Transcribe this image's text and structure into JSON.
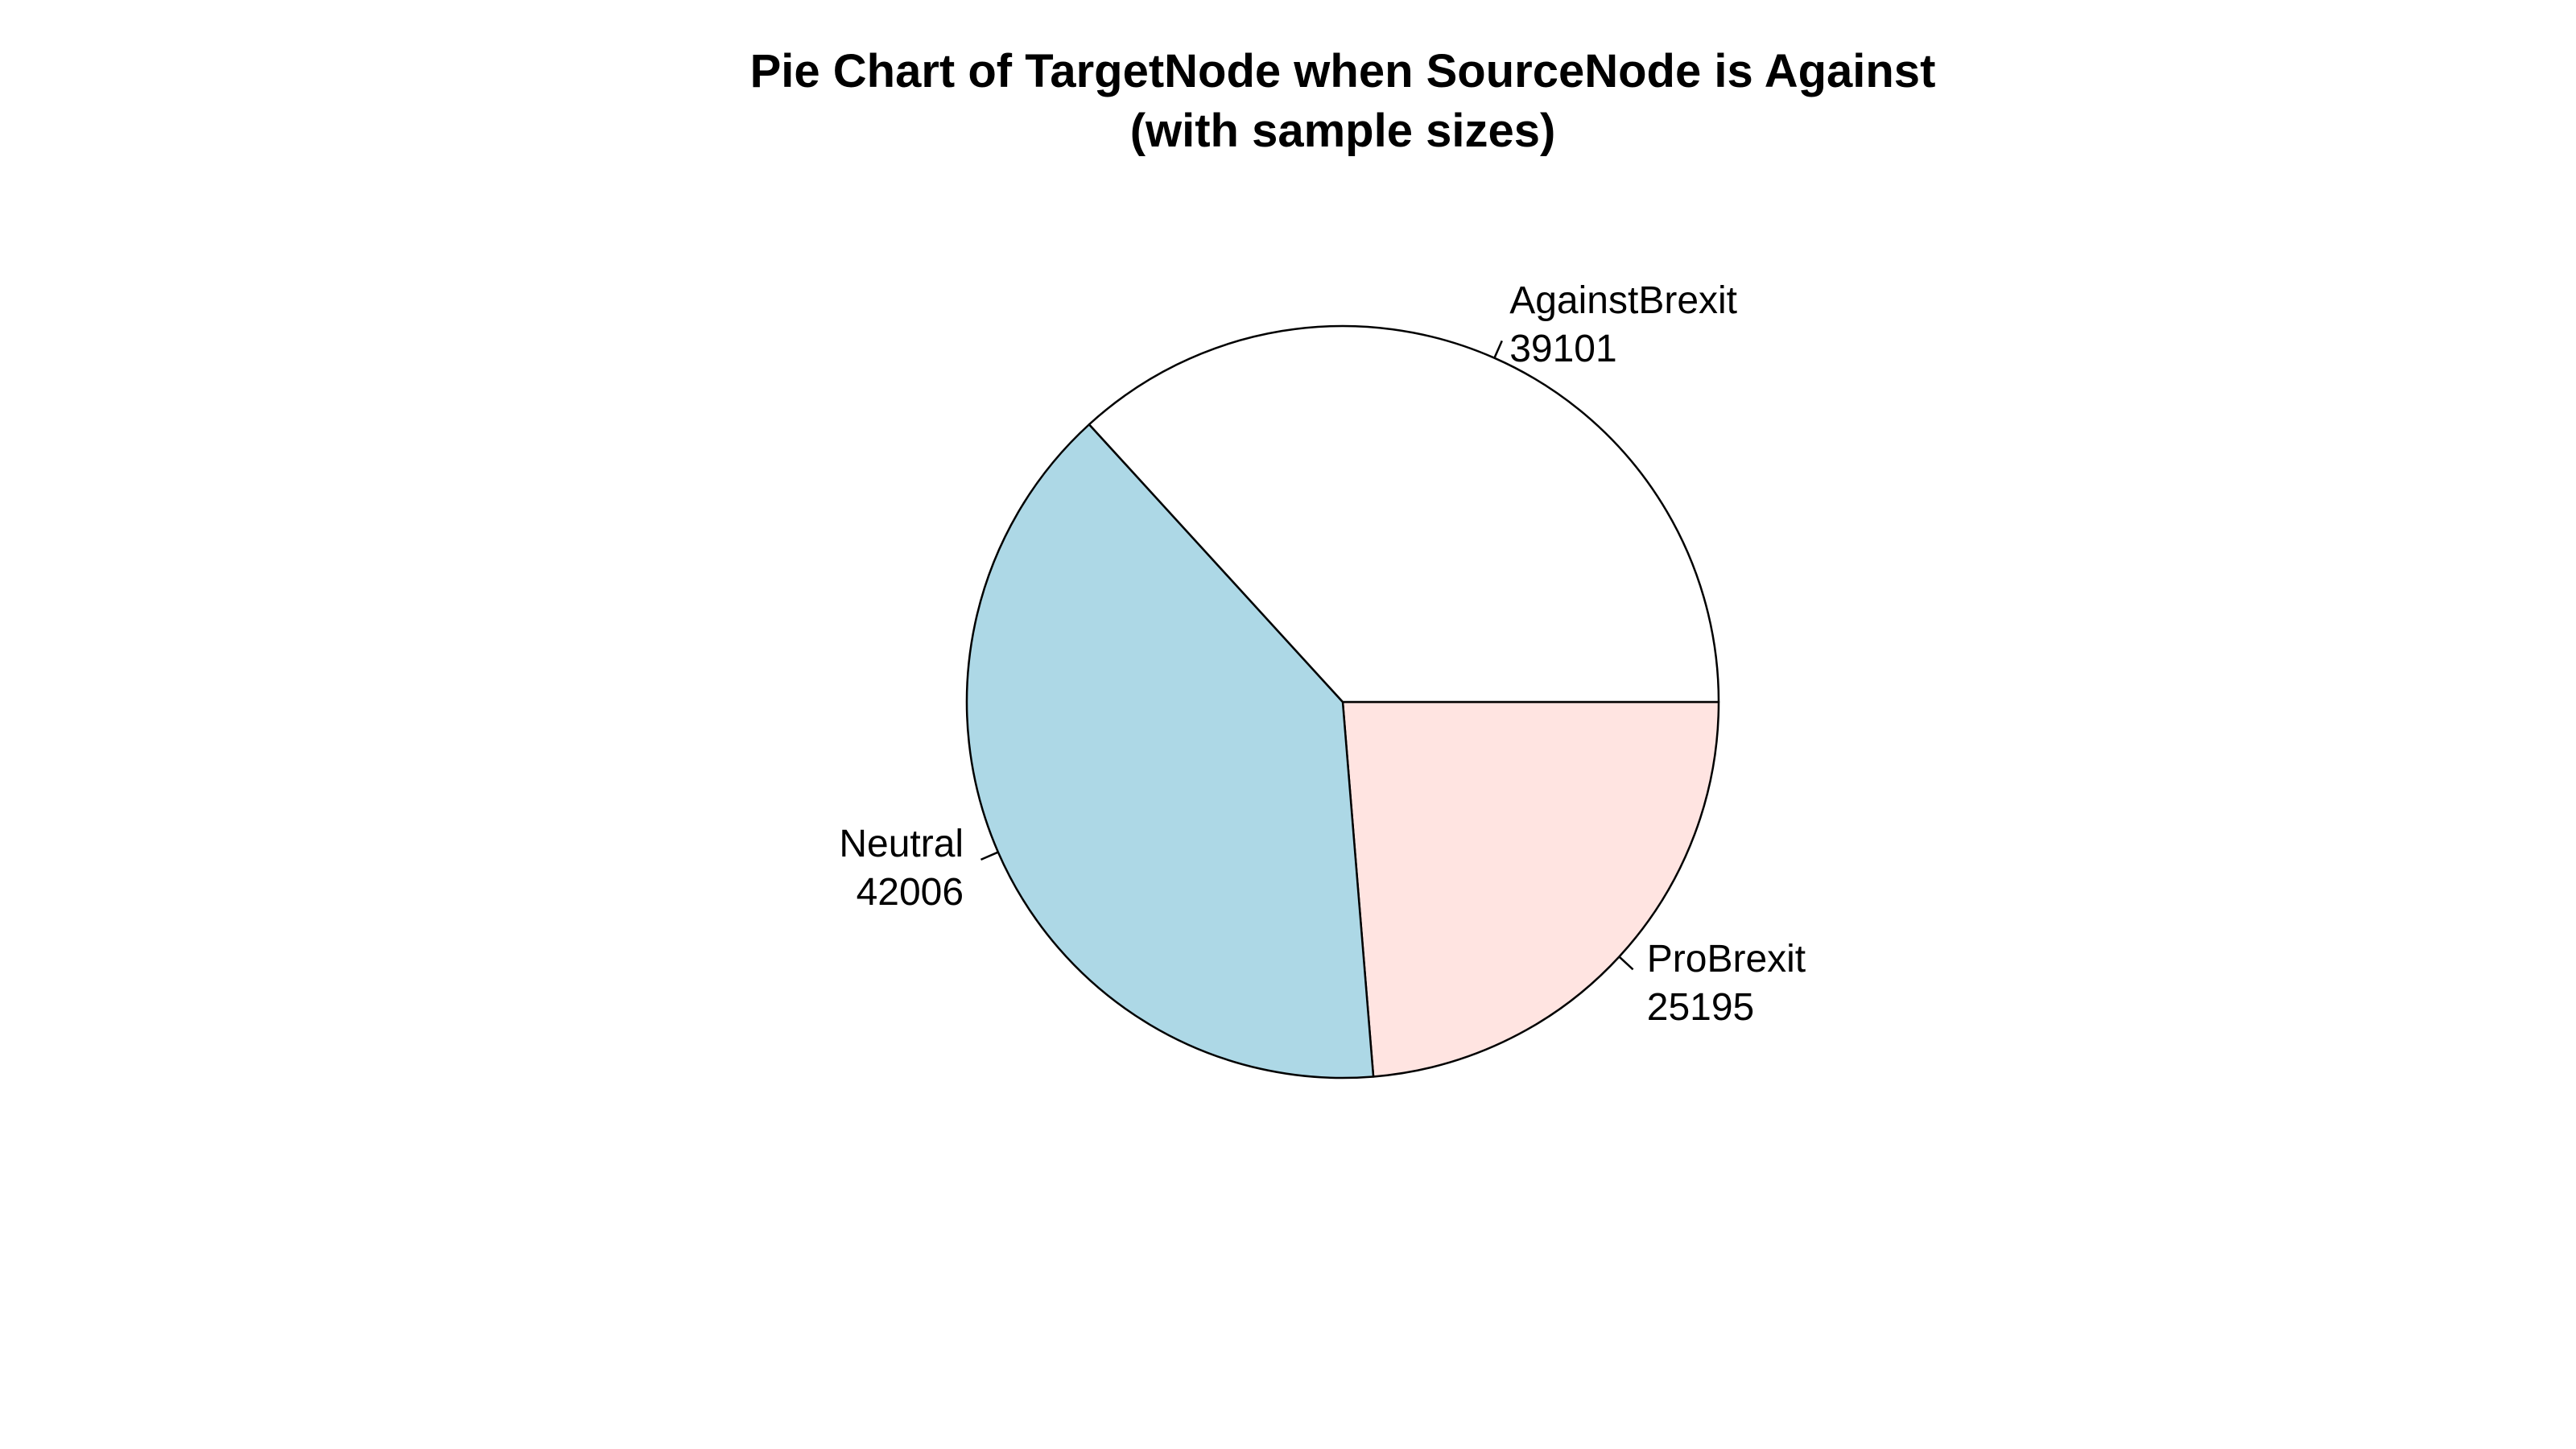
{
  "chart_data": {
    "type": "pie",
    "title": "Pie Chart of TargetNode when SourceNode is Against",
    "subtitle": "(with sample sizes)",
    "slices": [
      {
        "label": "ProBrexit",
        "value_text": "25195",
        "value": 25195,
        "color": "#FFE4E1"
      },
      {
        "label": "Neutral",
        "value_text": "42006",
        "value": 42006,
        "color": "#ADD8E6"
      },
      {
        "label": "AgainstBrexit",
        "value_text": "39101",
        "value": 39101,
        "color": "#FFFFFF"
      }
    ],
    "start_angle_deg": 0,
    "direction": "clockwise",
    "border_color": "#000000",
    "legend": "none"
  }
}
